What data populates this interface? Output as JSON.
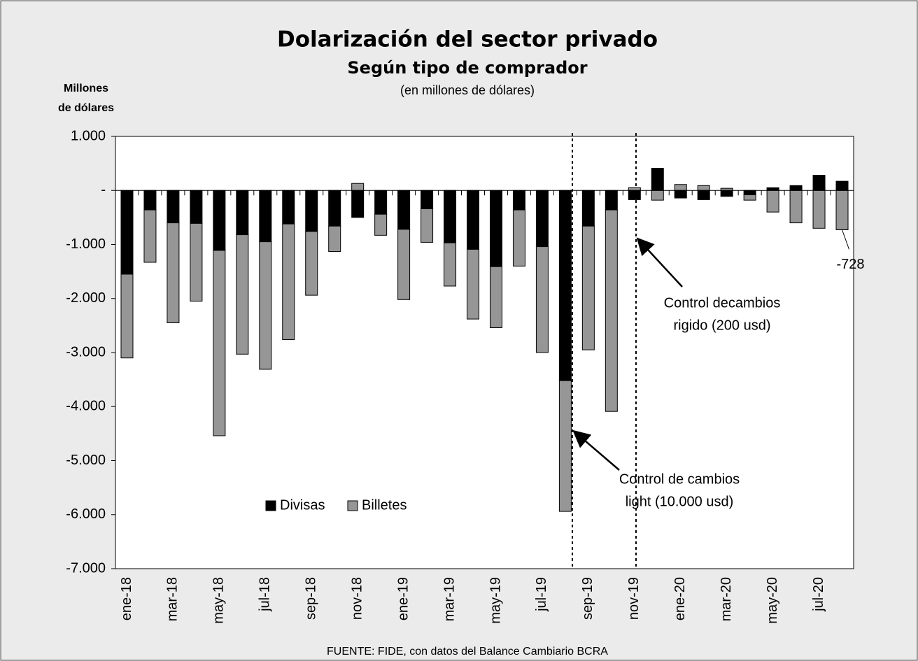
{
  "chart_data": {
    "type": "bar",
    "stacked": true,
    "title": "Dolarización del sector privado",
    "subtitle": "Según tipo de comprador",
    "note": "(en millones de dólares)",
    "y_axis_label": [
      "Millones",
      "de dólares"
    ],
    "source": "FUENTE: FIDE, con datos del Balance Cambiario BCRA",
    "categories": [
      "ene-18",
      null,
      "mar-18",
      null,
      "may-18",
      null,
      "jul-18",
      null,
      "sep-18",
      null,
      "nov-18",
      null,
      "ene-19",
      null,
      "mar-19",
      null,
      "may-19",
      null,
      "jul-19",
      null,
      "sep-19",
      null,
      "nov-19",
      null,
      "ene-20",
      null,
      "mar-20",
      null,
      "may-20",
      null,
      "jul-20",
      null
    ],
    "series": [
      {
        "name": "Divisas",
        "color": "#000000",
        "values": [
          -1550,
          -360,
          -600,
          -610,
          -1110,
          -820,
          -950,
          -620,
          -760,
          -660,
          -500,
          -440,
          -720,
          -340,
          -970,
          -1090,
          -1410,
          -360,
          -1040,
          -3520,
          -660,
          -360,
          -170,
          410,
          -140,
          -170,
          -110,
          -80,
          50,
          90,
          280,
          170
        ]
      },
      {
        "name": "Billetes",
        "color": "#969696",
        "values": [
          -1550,
          -970,
          -1850,
          -1440,
          -3430,
          -2210,
          -2360,
          -2140,
          -1180,
          -470,
          130,
          -390,
          -1300,
          -620,
          -800,
          -1290,
          -1130,
          -1040,
          -1960,
          -2420,
          -2290,
          -3730,
          50,
          -180,
          110,
          90,
          40,
          -100,
          -400,
          -600,
          -700,
          -728
        ],
        "value_labels": [
          null,
          null,
          null,
          null,
          null,
          null,
          null,
          null,
          null,
          null,
          null,
          null,
          null,
          null,
          null,
          null,
          null,
          null,
          null,
          null,
          null,
          null,
          null,
          null,
          null,
          null,
          null,
          null,
          null,
          null,
          null,
          "-728"
        ]
      }
    ],
    "ylim": [
      -7000,
      1000
    ],
    "yticks": [
      {
        "value": 1000,
        "label": "1.000"
      },
      {
        "value": 0,
        "label": "-"
      },
      {
        "value": -1000,
        "label": "-1.000"
      },
      {
        "value": -2000,
        "label": "-2.000"
      },
      {
        "value": -3000,
        "label": "-3.000"
      },
      {
        "value": -4000,
        "label": "-4.000"
      },
      {
        "value": -5000,
        "label": "-5.000"
      },
      {
        "value": -6000,
        "label": "-6.000"
      },
      {
        "value": -7000,
        "label": "-7.000"
      }
    ],
    "legend": "lower left",
    "annotations": [
      {
        "text": [
          "Control de cambios",
          "light (10.000 usd)"
        ]
      },
      {
        "text": [
          "Control decambios",
          "rigido (200 usd)"
        ]
      }
    ]
  }
}
